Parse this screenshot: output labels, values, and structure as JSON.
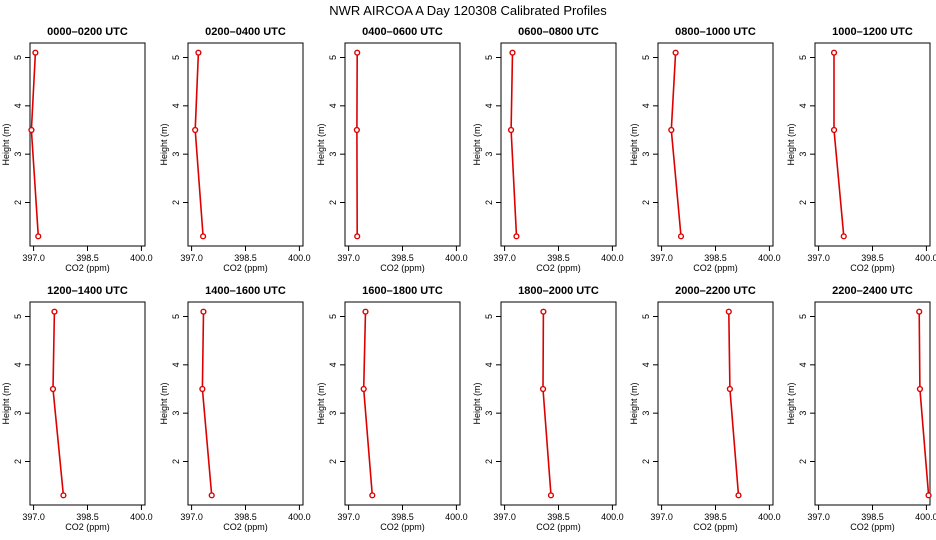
{
  "figure_title": "NWR AIRCOA A  Day 120308  Calibrated Profiles",
  "colors": {
    "series": "#dd0000",
    "axis": "#000000"
  },
  "chart_data": [
    {
      "type": "line",
      "title": "0000–0200 UTC",
      "xlabel": "CO2 (ppm)",
      "ylabel": "Height (m)",
      "xlim": [
        396.9,
        400.1
      ],
      "ylim": [
        1.1,
        5.3
      ],
      "xticks": [
        397.0,
        398.5,
        400.0
      ],
      "xtick_labels": [
        "397.0",
        "398.5",
        "400.0"
      ],
      "yticks": [
        2,
        3,
        4,
        5
      ],
      "ytick_labels": [
        "2",
        "3",
        "4",
        "5"
      ],
      "x": [
        397.13,
        396.94,
        397.05
      ],
      "y": [
        1.3,
        3.5,
        5.1
      ]
    },
    {
      "type": "line",
      "title": "0200–0400 UTC",
      "xlabel": "CO2 (ppm)",
      "ylabel": "Height (m)",
      "xlim": [
        396.9,
        400.1
      ],
      "ylim": [
        1.1,
        5.3
      ],
      "xticks": [
        397.0,
        398.5,
        400.0
      ],
      "xtick_labels": [
        "397.0",
        "398.5",
        "400.0"
      ],
      "yticks": [
        2,
        3,
        4,
        5
      ],
      "ytick_labels": [
        "2",
        "3",
        "4",
        "5"
      ],
      "x": [
        397.32,
        397.1,
        397.19
      ],
      "y": [
        1.3,
        3.5,
        5.1
      ]
    },
    {
      "type": "line",
      "title": "0400–0600 UTC",
      "xlabel": "CO2 (ppm)",
      "ylabel": "Height (m)",
      "xlim": [
        396.9,
        400.1
      ],
      "ylim": [
        1.1,
        5.3
      ],
      "xticks": [
        397.0,
        398.5,
        400.0
      ],
      "xtick_labels": [
        "397.0",
        "398.5",
        "400.0"
      ],
      "yticks": [
        2,
        3,
        4,
        5
      ],
      "ytick_labels": [
        "2",
        "3",
        "4",
        "5"
      ],
      "x": [
        397.24,
        397.23,
        397.24
      ],
      "y": [
        1.3,
        3.5,
        5.1
      ]
    },
    {
      "type": "line",
      "title": "0600–0800 UTC",
      "xlabel": "CO2 (ppm)",
      "ylabel": "Height (m)",
      "xlim": [
        396.9,
        400.1
      ],
      "ylim": [
        1.1,
        5.3
      ],
      "xticks": [
        397.0,
        398.5,
        400.0
      ],
      "xtick_labels": [
        "397.0",
        "398.5",
        "400.0"
      ],
      "yticks": [
        2,
        3,
        4,
        5
      ],
      "ytick_labels": [
        "2",
        "3",
        "4",
        "5"
      ],
      "x": [
        397.33,
        397.18,
        397.22
      ],
      "y": [
        1.3,
        3.5,
        5.1
      ]
    },
    {
      "type": "line",
      "title": "0800–1000 UTC",
      "xlabel": "CO2 (ppm)",
      "ylabel": "Height (m)",
      "xlim": [
        396.9,
        400.1
      ],
      "ylim": [
        1.1,
        5.3
      ],
      "xticks": [
        397.0,
        398.5,
        400.0
      ],
      "xtick_labels": [
        "397.0",
        "398.5",
        "400.0"
      ],
      "yticks": [
        2,
        3,
        4,
        5
      ],
      "ytick_labels": [
        "2",
        "3",
        "4",
        "5"
      ],
      "x": [
        397.54,
        397.27,
        397.39
      ],
      "y": [
        1.3,
        3.5,
        5.1
      ]
    },
    {
      "type": "line",
      "title": "1000–1200 UTC",
      "xlabel": "CO2 (ppm)",
      "ylabel": "Height (m)",
      "xlim": [
        396.9,
        400.1
      ],
      "ylim": [
        1.1,
        5.3
      ],
      "xticks": [
        397.0,
        398.5,
        400.0
      ],
      "xtick_labels": [
        "397.0",
        "398.5",
        "400.0"
      ],
      "yticks": [
        2,
        3,
        4,
        5
      ],
      "ytick_labels": [
        "2",
        "3",
        "4",
        "5"
      ],
      "x": [
        397.7,
        397.43,
        397.43
      ],
      "y": [
        1.3,
        3.5,
        5.1
      ]
    },
    {
      "type": "line",
      "title": "1200–1400 UTC",
      "xlabel": "CO2 (ppm)",
      "ylabel": "Height (m)",
      "xlim": [
        396.9,
        400.1
      ],
      "ylim": [
        1.1,
        5.3
      ],
      "xticks": [
        397.0,
        398.5,
        400.0
      ],
      "xtick_labels": [
        "397.0",
        "398.5",
        "400.0"
      ],
      "yticks": [
        2,
        3,
        4,
        5
      ],
      "ytick_labels": [
        "2",
        "3",
        "4",
        "5"
      ],
      "x": [
        397.83,
        397.54,
        397.58
      ],
      "y": [
        1.3,
        3.5,
        5.1
      ]
    },
    {
      "type": "line",
      "title": "1400–1600 UTC",
      "xlabel": "CO2 (ppm)",
      "ylabel": "Height (m)",
      "xlim": [
        396.9,
        400.1
      ],
      "ylim": [
        1.1,
        5.3
      ],
      "xticks": [
        397.0,
        398.5,
        400.0
      ],
      "xtick_labels": [
        "397.0",
        "398.5",
        "400.0"
      ],
      "yticks": [
        2,
        3,
        4,
        5
      ],
      "ytick_labels": [
        "2",
        "3",
        "4",
        "5"
      ],
      "x": [
        397.56,
        397.3,
        397.33
      ],
      "y": [
        1.3,
        3.5,
        5.1
      ]
    },
    {
      "type": "line",
      "title": "1600–1800 UTC",
      "xlabel": "CO2 (ppm)",
      "ylabel": "Height (m)",
      "xlim": [
        396.9,
        400.1
      ],
      "ylim": [
        1.1,
        5.3
      ],
      "xticks": [
        397.0,
        398.5,
        400.0
      ],
      "xtick_labels": [
        "397.0",
        "398.5",
        "400.0"
      ],
      "yticks": [
        2,
        3,
        4,
        5
      ],
      "ytick_labels": [
        "2",
        "3",
        "4",
        "5"
      ],
      "x": [
        397.66,
        397.42,
        397.47
      ],
      "y": [
        1.3,
        3.5,
        5.1
      ]
    },
    {
      "type": "line",
      "title": "1800–2000 UTC",
      "xlabel": "CO2 (ppm)",
      "ylabel": "Height (m)",
      "xlim": [
        396.9,
        400.1
      ],
      "ylim": [
        1.1,
        5.3
      ],
      "xticks": [
        397.0,
        398.5,
        400.0
      ],
      "xtick_labels": [
        "397.0",
        "398.5",
        "400.0"
      ],
      "yticks": [
        2,
        3,
        4,
        5
      ],
      "ytick_labels": [
        "2",
        "3",
        "4",
        "5"
      ],
      "x": [
        398.29,
        398.07,
        398.08
      ],
      "y": [
        1.3,
        3.5,
        5.1
      ]
    },
    {
      "type": "line",
      "title": "2000–2200 UTC",
      "xlabel": "CO2 (ppm)",
      "ylabel": "Height (m)",
      "xlim": [
        396.9,
        400.1
      ],
      "ylim": [
        1.1,
        5.3
      ],
      "xticks": [
        397.0,
        398.5,
        400.0
      ],
      "xtick_labels": [
        "397.0",
        "398.5",
        "400.0"
      ],
      "yticks": [
        2,
        3,
        4,
        5
      ],
      "ytick_labels": [
        "2",
        "3",
        "4",
        "5"
      ],
      "x": [
        399.14,
        398.9,
        398.87
      ],
      "y": [
        1.3,
        3.5,
        5.1
      ]
    },
    {
      "type": "line",
      "title": "2200–2400 UTC",
      "xlabel": "CO2 (ppm)",
      "ylabel": "Height (m)",
      "xlim": [
        396.9,
        400.1
      ],
      "ylim": [
        1.1,
        5.3
      ],
      "xticks": [
        397.0,
        398.5,
        400.0
      ],
      "xtick_labels": [
        "397.0",
        "398.5",
        "400.0"
      ],
      "yticks": [
        2,
        3,
        4,
        5
      ],
      "ytick_labels": [
        "2",
        "3",
        "4",
        "5"
      ],
      "x": [
        400.06,
        399.82,
        399.8
      ],
      "y": [
        1.3,
        3.5,
        5.1
      ]
    }
  ]
}
